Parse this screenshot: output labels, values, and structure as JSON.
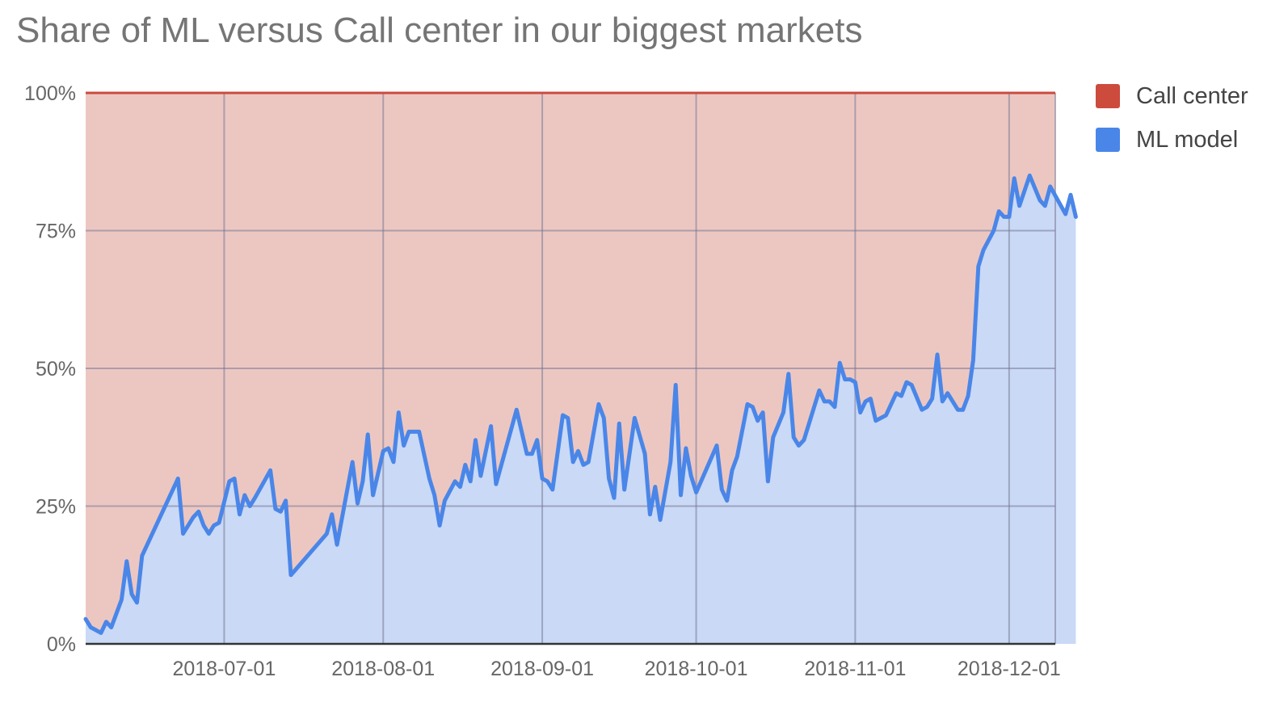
{
  "chart_data": {
    "type": "area",
    "stacked": "percent",
    "title": "Share of ML versus Call center in our biggest markets",
    "xlabel": "",
    "ylabel": "",
    "ylim": [
      0,
      100
    ],
    "y_ticks": [
      "0%",
      "25%",
      "50%",
      "75%",
      "100%"
    ],
    "x_range": [
      "2018-06-04",
      "2018-12-10"
    ],
    "x_ticks": [
      "2018-07-01",
      "2018-08-01",
      "2018-09-01",
      "2018-10-01",
      "2018-11-01",
      "2018-12-01"
    ],
    "grid": true,
    "legend_position": "right",
    "series": [
      {
        "name": "Call center",
        "color": "#cc4b3d",
        "fill": "#ecc7c2",
        "note_values": "complement of ML model share (100 - ML model)"
      },
      {
        "name": "ML model",
        "color": "#4a86e8",
        "fill": "#c9d9f6",
        "points": [
          [
            "2018-06-04",
            4.5
          ],
          [
            "2018-06-05",
            3
          ],
          [
            "2018-06-07",
            2
          ],
          [
            "2018-06-08",
            4
          ],
          [
            "2018-06-09",
            3
          ],
          [
            "2018-06-11",
            8
          ],
          [
            "2018-06-12",
            15
          ],
          [
            "2018-06-13",
            9
          ],
          [
            "2018-06-14",
            7.5
          ],
          [
            "2018-06-15",
            16
          ],
          [
            "2018-06-22",
            30
          ],
          [
            "2018-06-23",
            20
          ],
          [
            "2018-06-25",
            23
          ],
          [
            "2018-06-26",
            24
          ],
          [
            "2018-06-27",
            21.5
          ],
          [
            "2018-06-28",
            20
          ],
          [
            "2018-06-29",
            21.5
          ],
          [
            "2018-06-30",
            22
          ],
          [
            "2018-07-02",
            29.5
          ],
          [
            "2018-07-03",
            30
          ],
          [
            "2018-07-04",
            23.5
          ],
          [
            "2018-07-05",
            27
          ],
          [
            "2018-07-06",
            25
          ],
          [
            "2018-07-07",
            26.5
          ],
          [
            "2018-07-10",
            31.5
          ],
          [
            "2018-07-11",
            24.5
          ],
          [
            "2018-07-12",
            24
          ],
          [
            "2018-07-13",
            26
          ],
          [
            "2018-07-14",
            12.5
          ],
          [
            "2018-07-21",
            20
          ],
          [
            "2018-07-22",
            23.5
          ],
          [
            "2018-07-23",
            18
          ],
          [
            "2018-07-25",
            28
          ],
          [
            "2018-07-26",
            33
          ],
          [
            "2018-07-27",
            25.5
          ],
          [
            "2018-07-28",
            29.5
          ],
          [
            "2018-07-29",
            38
          ],
          [
            "2018-07-30",
            27
          ],
          [
            "2018-08-01",
            35
          ],
          [
            "2018-08-02",
            35.5
          ],
          [
            "2018-08-03",
            33
          ],
          [
            "2018-08-04",
            42
          ],
          [
            "2018-08-05",
            36
          ],
          [
            "2018-08-06",
            38.5
          ],
          [
            "2018-08-08",
            38.5
          ],
          [
            "2018-08-10",
            30
          ],
          [
            "2018-08-11",
            27
          ],
          [
            "2018-08-12",
            21.5
          ],
          [
            "2018-08-13",
            26
          ],
          [
            "2018-08-15",
            29.5
          ],
          [
            "2018-08-16",
            28.5
          ],
          [
            "2018-08-17",
            32.5
          ],
          [
            "2018-08-18",
            29.5
          ],
          [
            "2018-08-19",
            37
          ],
          [
            "2018-08-20",
            30.5
          ],
          [
            "2018-08-22",
            39.5
          ],
          [
            "2018-08-23",
            29
          ],
          [
            "2018-08-27",
            42.5
          ],
          [
            "2018-08-29",
            34.5
          ],
          [
            "2018-08-30",
            34.5
          ],
          [
            "2018-08-31",
            37
          ],
          [
            "2018-09-01",
            30
          ],
          [
            "2018-09-02",
            29.5
          ],
          [
            "2018-09-03",
            28
          ],
          [
            "2018-09-05",
            41.5
          ],
          [
            "2018-09-06",
            41
          ],
          [
            "2018-09-07",
            33
          ],
          [
            "2018-09-08",
            35
          ],
          [
            "2018-09-09",
            32.5
          ],
          [
            "2018-09-10",
            33
          ],
          [
            "2018-09-12",
            43.5
          ],
          [
            "2018-09-13",
            41
          ],
          [
            "2018-09-14",
            30
          ],
          [
            "2018-09-15",
            26.5
          ],
          [
            "2018-09-16",
            40
          ],
          [
            "2018-09-17",
            28
          ],
          [
            "2018-09-19",
            41
          ],
          [
            "2018-09-21",
            34.5
          ],
          [
            "2018-09-22",
            23.5
          ],
          [
            "2018-09-23",
            28.5
          ],
          [
            "2018-09-24",
            22.5
          ],
          [
            "2018-09-26",
            33
          ],
          [
            "2018-09-27",
            47
          ],
          [
            "2018-09-28",
            27
          ],
          [
            "2018-09-29",
            35.5
          ],
          [
            "2018-09-30",
            30.5
          ],
          [
            "2018-10-01",
            27.5
          ],
          [
            "2018-10-05",
            36
          ],
          [
            "2018-10-06",
            28
          ],
          [
            "2018-10-07",
            26
          ],
          [
            "2018-10-08",
            31.5
          ],
          [
            "2018-10-09",
            34
          ],
          [
            "2018-10-11",
            43.5
          ],
          [
            "2018-10-12",
            43
          ],
          [
            "2018-10-13",
            40.5
          ],
          [
            "2018-10-14",
            42
          ],
          [
            "2018-10-15",
            29.5
          ],
          [
            "2018-10-16",
            37.5
          ],
          [
            "2018-10-18",
            42
          ],
          [
            "2018-10-19",
            49
          ],
          [
            "2018-10-20",
            37.5
          ],
          [
            "2018-10-21",
            36
          ],
          [
            "2018-10-22",
            37
          ],
          [
            "2018-10-25",
            46
          ],
          [
            "2018-10-26",
            44
          ],
          [
            "2018-10-27",
            44
          ],
          [
            "2018-10-28",
            43
          ],
          [
            "2018-10-29",
            51
          ],
          [
            "2018-10-30",
            48
          ],
          [
            "2018-10-31",
            48
          ],
          [
            "2018-11-01",
            47.5
          ],
          [
            "2018-11-02",
            42
          ],
          [
            "2018-11-03",
            44
          ],
          [
            "2018-11-04",
            44.5
          ],
          [
            "2018-11-05",
            40.5
          ],
          [
            "2018-11-07",
            41.5
          ],
          [
            "2018-11-09",
            45.5
          ],
          [
            "2018-11-10",
            45
          ],
          [
            "2018-11-11",
            47.5
          ],
          [
            "2018-11-12",
            47
          ],
          [
            "2018-11-14",
            42.5
          ],
          [
            "2018-11-15",
            43
          ],
          [
            "2018-11-16",
            44.5
          ],
          [
            "2018-11-17",
            52.5
          ],
          [
            "2018-11-18",
            44
          ],
          [
            "2018-11-19",
            45.5
          ],
          [
            "2018-11-21",
            42.5
          ],
          [
            "2018-11-22",
            42.5
          ],
          [
            "2018-11-23",
            45
          ],
          [
            "2018-11-24",
            51.5
          ],
          [
            "2018-11-25",
            68.5
          ],
          [
            "2018-11-26",
            71.5
          ],
          [
            "2018-11-28",
            75
          ],
          [
            "2018-11-29",
            78.5
          ],
          [
            "2018-11-30",
            77.5
          ],
          [
            "2018-12-01",
            77.5
          ],
          [
            "2018-12-02",
            84.5
          ],
          [
            "2018-12-03",
            79.5
          ],
          [
            "2018-12-05",
            85
          ],
          [
            "2018-12-07",
            80.5
          ],
          [
            "2018-12-08",
            79.5
          ],
          [
            "2018-12-09",
            83
          ],
          [
            "2018-12-12",
            78
          ],
          [
            "2018-12-13",
            81.5
          ],
          [
            "2018-12-14",
            77.5
          ]
        ]
      }
    ]
  }
}
